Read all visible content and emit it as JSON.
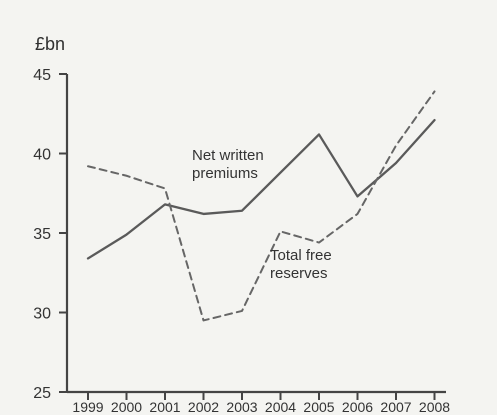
{
  "chart_data": {
    "type": "line",
    "ylabel": "£bn",
    "x": [
      "1999",
      "2000",
      "2001",
      "2002",
      "2003",
      "2004",
      "2005",
      "2006",
      "2007",
      "2008"
    ],
    "ylim": [
      25,
      45
    ],
    "yticks": [
      25,
      30,
      35,
      40,
      45
    ],
    "grid": false,
    "series": [
      {
        "name": "Net written premiums",
        "style": "solid",
        "color": "#5a5a5a",
        "values": [
          33.4,
          34.9,
          36.8,
          36.2,
          36.4,
          38.8,
          41.2,
          37.3,
          39.4,
          42.1
        ]
      },
      {
        "name": "Total free reserves",
        "style": "dashed",
        "color": "#666666",
        "values": [
          39.2,
          38.6,
          37.8,
          29.5,
          30.1,
          35.1,
          34.4,
          36.2,
          40.5,
          43.9
        ]
      }
    ],
    "annotations": [
      {
        "series_index": 0,
        "lines": [
          "Net written",
          "premiums"
        ]
      },
      {
        "series_index": 1,
        "lines": [
          "Total free",
          "reserves"
        ]
      }
    ]
  }
}
